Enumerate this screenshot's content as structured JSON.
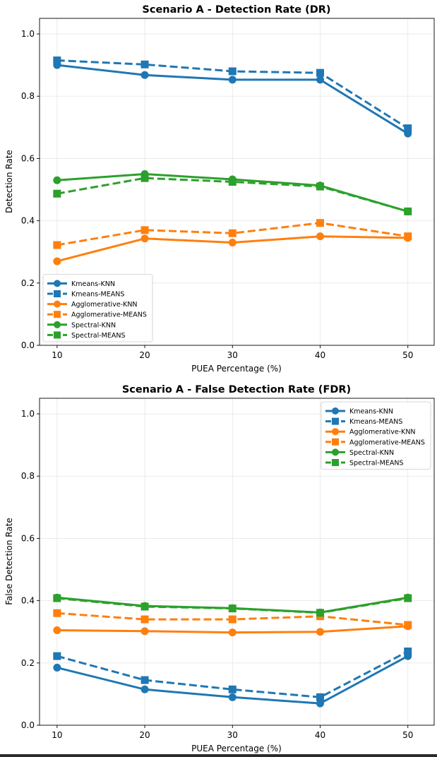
{
  "chart_data": [
    {
      "type": "line",
      "title": "Scenario A - Detection Rate (DR)",
      "xlabel": "PUEA Percentage (%)",
      "ylabel": "Detection Rate",
      "x": [
        10,
        20,
        30,
        40,
        50
      ],
      "xticks": [
        "10",
        "20",
        "30",
        "40",
        "50"
      ],
      "xlim": [
        8,
        53
      ],
      "ylim": [
        0,
        1.05
      ],
      "yticks": [
        "0.0",
        "0.2",
        "0.4",
        "0.6",
        "0.8",
        "1.0"
      ],
      "grid": true,
      "legend_position": "lower-left",
      "series": [
        {
          "name": "Kmeans-KNN",
          "values": [
            0.9,
            0.868,
            0.853,
            0.853,
            0.68
          ],
          "color": "#1f77b4",
          "dash": "solid",
          "marker": "circle"
        },
        {
          "name": "Kmeans-MEANS",
          "values": [
            0.915,
            0.902,
            0.88,
            0.875,
            0.697
          ],
          "color": "#1f77b4",
          "dash": "dashed",
          "marker": "square"
        },
        {
          "name": "Agglomerative-KNN",
          "values": [
            0.27,
            0.343,
            0.33,
            0.35,
            0.345
          ],
          "color": "#ff7f0e",
          "dash": "solid",
          "marker": "circle"
        },
        {
          "name": "Agglomerative-MEANS",
          "values": [
            0.322,
            0.37,
            0.36,
            0.393,
            0.35
          ],
          "color": "#ff7f0e",
          "dash": "dashed",
          "marker": "square"
        },
        {
          "name": "Spectral-KNN",
          "values": [
            0.53,
            0.55,
            0.533,
            0.513,
            0.43
          ],
          "color": "#2ca02c",
          "dash": "solid",
          "marker": "circle"
        },
        {
          "name": "Spectral-MEANS",
          "values": [
            0.487,
            0.537,
            0.525,
            0.51,
            0.43
          ],
          "color": "#2ca02c",
          "dash": "dashed",
          "marker": "square"
        }
      ]
    },
    {
      "type": "line",
      "title": "Scenario A - False Detection Rate (FDR)",
      "xlabel": "PUEA Percentage (%)",
      "ylabel": "False Detection Rate",
      "x": [
        10,
        20,
        30,
        40,
        50
      ],
      "xticks": [
        "10",
        "20",
        "30",
        "40",
        "50"
      ],
      "xlim": [
        8,
        53
      ],
      "ylim": [
        0,
        1.05
      ],
      "yticks": [
        "0.0",
        "0.2",
        "0.4",
        "0.6",
        "0.8",
        "1.0"
      ],
      "grid": true,
      "legend_position": "upper-right",
      "series": [
        {
          "name": "Kmeans-KNN",
          "values": [
            0.185,
            0.115,
            0.09,
            0.07,
            0.222
          ],
          "color": "#1f77b4",
          "dash": "solid",
          "marker": "circle"
        },
        {
          "name": "Kmeans-MEANS",
          "values": [
            0.222,
            0.145,
            0.115,
            0.09,
            0.237
          ],
          "color": "#1f77b4",
          "dash": "dashed",
          "marker": "square"
        },
        {
          "name": "Agglomerative-KNN",
          "values": [
            0.305,
            0.302,
            0.298,
            0.3,
            0.318
          ],
          "color": "#ff7f0e",
          "dash": "solid",
          "marker": "circle"
        },
        {
          "name": "Agglomerative-MEANS",
          "values": [
            0.36,
            0.34,
            0.34,
            0.35,
            0.322
          ],
          "color": "#ff7f0e",
          "dash": "dashed",
          "marker": "square"
        },
        {
          "name": "Spectral-KNN",
          "values": [
            0.41,
            0.383,
            0.376,
            0.362,
            0.41
          ],
          "color": "#2ca02c",
          "dash": "solid",
          "marker": "circle"
        },
        {
          "name": "Spectral-MEANS",
          "values": [
            0.408,
            0.381,
            0.375,
            0.361,
            0.408
          ],
          "color": "#2ca02c",
          "dash": "dashed",
          "marker": "square"
        }
      ]
    }
  ]
}
